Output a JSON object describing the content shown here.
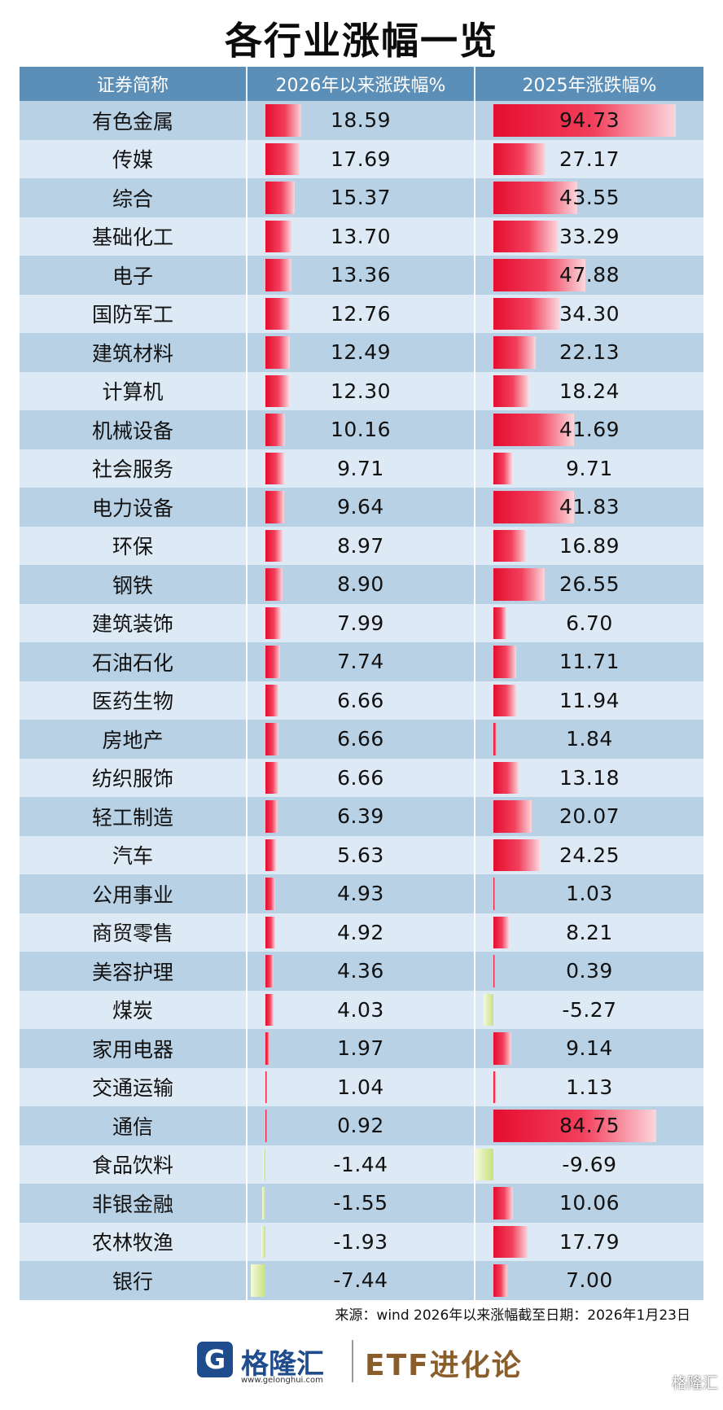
{
  "title": "各行业涨幅一览",
  "headers": [
    "证券简称",
    "2026年以来涨跌幅%",
    "2025年涨跌幅%"
  ],
  "rows": [
    {
      "name": "有色金属",
      "ytd": "18.59",
      "y2025": "94.73"
    },
    {
      "name": "传媒",
      "ytd": "17.69",
      "y2025": "27.17"
    },
    {
      "name": "综合",
      "ytd": "15.37",
      "y2025": "43.55"
    },
    {
      "name": "基础化工",
      "ytd": "13.70",
      "y2025": "33.29"
    },
    {
      "name": "电子",
      "ytd": "13.36",
      "y2025": "47.88"
    },
    {
      "name": "国防军工",
      "ytd": "12.76",
      "y2025": "34.30"
    },
    {
      "name": "建筑材料",
      "ytd": "12.49",
      "y2025": "22.13"
    },
    {
      "name": "计算机",
      "ytd": "12.30",
      "y2025": "18.24"
    },
    {
      "name": "机械设备",
      "ytd": "10.16",
      "y2025": "41.69"
    },
    {
      "name": "社会服务",
      "ytd": "9.71",
      "y2025": "9.71"
    },
    {
      "name": "电力设备",
      "ytd": "9.64",
      "y2025": "41.83"
    },
    {
      "name": "环保",
      "ytd": "8.97",
      "y2025": "16.89"
    },
    {
      "name": "钢铁",
      "ytd": "8.90",
      "y2025": "26.55"
    },
    {
      "name": "建筑装饰",
      "ytd": "7.99",
      "y2025": "6.70"
    },
    {
      "name": "石油石化",
      "ytd": "7.74",
      "y2025": "11.71"
    },
    {
      "name": "医药生物",
      "ytd": "6.66",
      "y2025": "11.94"
    },
    {
      "name": "房地产",
      "ytd": "6.66",
      "y2025": "1.84"
    },
    {
      "name": "纺织服饰",
      "ytd": "6.66",
      "y2025": "13.18"
    },
    {
      "name": "轻工制造",
      "ytd": "6.39",
      "y2025": "20.07"
    },
    {
      "name": "汽车",
      "ytd": "5.63",
      "y2025": "24.25"
    },
    {
      "name": "公用事业",
      "ytd": "4.93",
      "y2025": "1.03"
    },
    {
      "name": "商贸零售",
      "ytd": "4.92",
      "y2025": "8.21"
    },
    {
      "name": "美容护理",
      "ytd": "4.36",
      "y2025": "0.39"
    },
    {
      "name": "煤炭",
      "ytd": "4.03",
      "y2025": "-5.27"
    },
    {
      "name": "家用电器",
      "ytd": "1.97",
      "y2025": "9.14"
    },
    {
      "name": "交通运输",
      "ytd": "1.04",
      "y2025": "1.13"
    },
    {
      "name": "通信",
      "ytd": "0.92",
      "y2025": "84.75"
    },
    {
      "name": "食品饮料",
      "ytd": "-1.44",
      "y2025": "-9.69"
    },
    {
      "name": "非银金融",
      "ytd": "-1.55",
      "y2025": "10.06"
    },
    {
      "name": "农林牧渔",
      "ytd": "-1.93",
      "y2025": "17.79"
    },
    {
      "name": "银行",
      "ytd": "-7.44",
      "y2025": "7.00"
    }
  ],
  "source": "来源：wind 2026年以来涨幅截至日期：2026年1月23日",
  "footer": {
    "logo_glyph": "G",
    "brand": "格隆汇",
    "brand_url": "www.gelonghui.com",
    "channel": "ETF进化论",
    "watermark": "格隆汇"
  },
  "colors": {
    "header_bg": "#5b8fb8",
    "row_dark": "#b9d1e5",
    "row_light": "#dde9f4",
    "bar_positive": "#e50d2f",
    "bar_negative": "#c9e07f",
    "brand_blue": "#1e4c8c",
    "etf_gold": "#8a5e2a"
  }
}
